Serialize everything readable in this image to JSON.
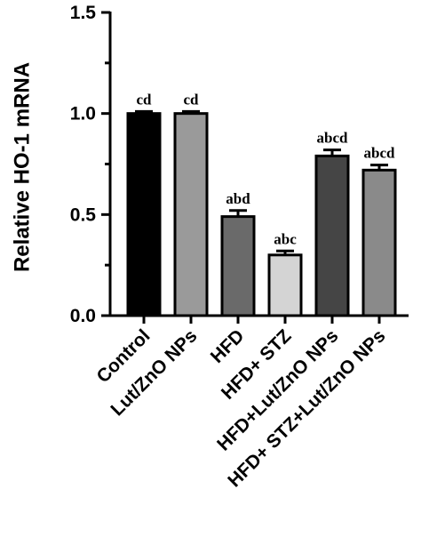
{
  "chart_data": {
    "type": "bar",
    "ylabel": "Relative HO-1 mRNA",
    "xlabel": "",
    "ylim": [
      0,
      1.5
    ],
    "yticks": [
      0.0,
      0.5,
      1.0,
      1.5
    ],
    "ytick_labels": [
      "0.0",
      "0.5",
      "1.0",
      "1.5"
    ],
    "categories": [
      "Control",
      "Lut/ZnO NPs",
      "HFD",
      "HFD+ STZ",
      "HFD+Lut/ZnO NPs",
      "HFD+ STZ+Lut/ZnO NPs"
    ],
    "values": [
      1.0,
      1.0,
      0.49,
      0.3,
      0.79,
      0.72
    ],
    "errors": [
      0.01,
      0.01,
      0.03,
      0.02,
      0.03,
      0.025
    ],
    "significance": [
      "cd",
      "cd",
      "abd",
      "abc",
      "abcd",
      "abcd"
    ],
    "colors": [
      "#000000",
      "#9a9a9a",
      "#6a6a6a",
      "#d4d4d4",
      "#454545",
      "#8a8a8a"
    ],
    "grid": false,
    "legend": "none"
  }
}
